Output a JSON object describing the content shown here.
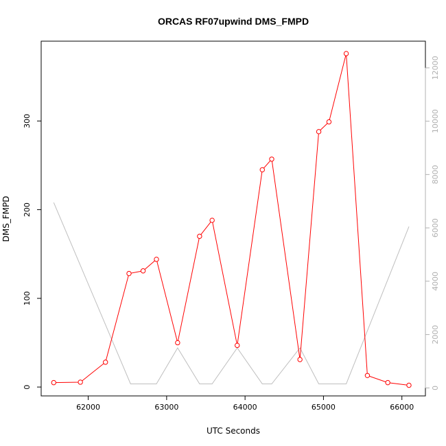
{
  "chart_data": {
    "type": "line",
    "title": "ORCAS RF07upwind DMS_FMPD",
    "xlabel": "UTC Seconds",
    "ylabel": "DMS_FMPD",
    "xlim": [
      61400,
      66300
    ],
    "ylim": [
      -10,
      390
    ],
    "y2lim": [
      -300,
      13000
    ],
    "x_ticks": [
      62000,
      63000,
      64000,
      65000,
      66000
    ],
    "y_ticks": [
      0,
      100,
      200,
      300
    ],
    "y2_ticks": [
      0,
      2000,
      4000,
      6000,
      8000,
      10000,
      12000
    ],
    "grid": false,
    "legend": "none",
    "colors": {
      "series": "#ff0000",
      "secondary": "#bebebe",
      "axes": "#000000",
      "right_axis": "#b0b0b0"
    },
    "series": [
      {
        "axis": "left",
        "marker": "open-circle",
        "x": [
          61560,
          61900,
          62220,
          62520,
          62700,
          62870,
          63140,
          63420,
          63580,
          63900,
          64220,
          64340,
          64700,
          64940,
          65070,
          65290,
          65560,
          65820,
          66090
        ],
        "y": [
          5,
          5.5,
          28,
          128,
          131,
          144,
          50,
          170,
          188,
          47,
          245,
          257,
          31,
          288,
          299,
          376,
          13,
          5,
          2
        ]
      },
      {
        "axis": "right",
        "marker": "none",
        "x": [
          61560,
          62540,
          62870,
          63140,
          63420,
          63580,
          63900,
          64220,
          64340,
          64700,
          64940,
          65290,
          66090
        ],
        "y": [
          6950,
          150,
          150,
          1500,
          150,
          150,
          1500,
          150,
          150,
          1500,
          150,
          150,
          6050
        ]
      }
    ]
  }
}
